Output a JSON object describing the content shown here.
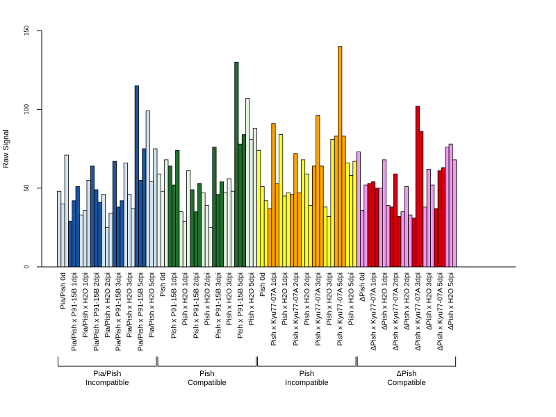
{
  "chart_data": {
    "type": "bar",
    "ylabel": "Raw Signal",
    "ylim": [
      0,
      150
    ],
    "yticks": [
      0,
      50,
      100,
      150
    ],
    "grid": false,
    "categories": [
      "Pia/Pish 0d",
      "Pia/Pish x P91-15B 1dpi",
      "Pia/Pish x H2O 1dpi",
      "Pia/Pish x P91-15B 2dpi",
      "Pia/Pish x H2O 2dpi",
      "Pia/Pish x P91-15B 3dpi",
      "Pia/Pish x H2O 3dpi",
      "Pia/Pish x P91-15B 5dpi",
      "Pia/Pish x H2O 5dpi",
      "Pish 0d",
      "Pish x P91-15B 1dpi",
      "Pish x H2O 1dpi",
      "Pish x P91-15B 2dpi",
      "Pish x H2O 2dpi",
      "Pish x P91-15B 3dpi",
      "Pish x H2O 3dpi",
      "Pish x P91-15B 5dpi",
      "Pish x H2O 5dpi",
      "Pish 0d",
      "Pish x Kyu77-07A 1dpi",
      "Pish x H2O 1dpi",
      "Pish x Kyu77-07A 2dpi",
      "Pish x H2O 2dpi",
      "Pish x Kyu77-07A 3dpi",
      "Pish x H2O 3dpi",
      "Pish x Kyu77-07A 5dpi",
      "Pish x H2O 5dpi",
      "ΔPish 0d",
      "ΔPish x Kyu77-07A 1dpi",
      "ΔPish x H2O 1dpi",
      "ΔPish x Kyu77-07A 2dpi",
      "ΔPish x H2O 2dpi",
      "ΔPish x Kyu77-07A 3dpi",
      "ΔPish x H2O 3dpi",
      "ΔPish x Kyu77-07A 5dpi",
      "ΔPish x H2O 5dpi"
    ],
    "values": [
      [
        48,
        40,
        71
      ],
      [
        29,
        42,
        51
      ],
      [
        33,
        36,
        55
      ],
      [
        64,
        49,
        41
      ],
      [
        46,
        25,
        34
      ],
      [
        67,
        38,
        42
      ],
      [
        66,
        46,
        37
      ],
      [
        115,
        55,
        75
      ],
      [
        99,
        54,
        75
      ],
      [
        59,
        48,
        68
      ],
      [
        64,
        52,
        74
      ],
      [
        35,
        29,
        61
      ],
      [
        49,
        35,
        53
      ],
      [
        47,
        39,
        25
      ],
      [
        76,
        46,
        54
      ],
      [
        47,
        56,
        48
      ],
      [
        130,
        78,
        84
      ],
      [
        107,
        81,
        88
      ],
      [
        74,
        51,
        42
      ],
      [
        37,
        91,
        53
      ],
      [
        84,
        45,
        47
      ],
      [
        46,
        72,
        47
      ],
      [
        68,
        59,
        39
      ],
      [
        64,
        96,
        64
      ],
      [
        38,
        32,
        81
      ],
      [
        83,
        140,
        83
      ],
      [
        66,
        58,
        67
      ],
      [
        73,
        36,
        52
      ],
      [
        53,
        54,
        50
      ],
      [
        50,
        68,
        39
      ],
      [
        38,
        59,
        32
      ],
      [
        35,
        51,
        33
      ],
      [
        31,
        102,
        86
      ],
      [
        38,
        62,
        52
      ],
      [
        37,
        61,
        63
      ],
      [
        76,
        78,
        68
      ]
    ],
    "bar_colors": [
      "#d4e3ef",
      "#1a55a3",
      "#d4e3ef",
      "#1a55a3",
      "#d4e3ef",
      "#1a55a3",
      "#d4e3ef",
      "#1a55a3",
      "#d4e3ef",
      "#e6f2e3",
      "#1f6e2e",
      "#e6f2e3",
      "#1f6e2e",
      "#e6f2e3",
      "#1f6e2e",
      "#e6f2e3",
      "#1f6e2e",
      "#e6f2e3",
      "#ffff33",
      "#ffa500",
      "#ffff33",
      "#ffa500",
      "#ffff33",
      "#ffa500",
      "#ffff33",
      "#ffa500",
      "#ffff33",
      "#ee99ee",
      "#cc0011",
      "#ee99ee",
      "#cc0011",
      "#ee99ee",
      "#cc0011",
      "#ee99ee",
      "#cc0011",
      "#ee99ee"
    ],
    "groups": [
      {
        "line1": "Pia/Pish",
        "line2": "Incompatible",
        "from": 0,
        "to": 8
      },
      {
        "line1": "Pish",
        "line2": "Compatible",
        "from": 9,
        "to": 17
      },
      {
        "line1": "Pish",
        "line2": "Incompatible",
        "from": 18,
        "to": 26
      },
      {
        "line1": "ΔPish",
        "line2": "Compatible",
        "from": 27,
        "to": 35
      }
    ]
  }
}
